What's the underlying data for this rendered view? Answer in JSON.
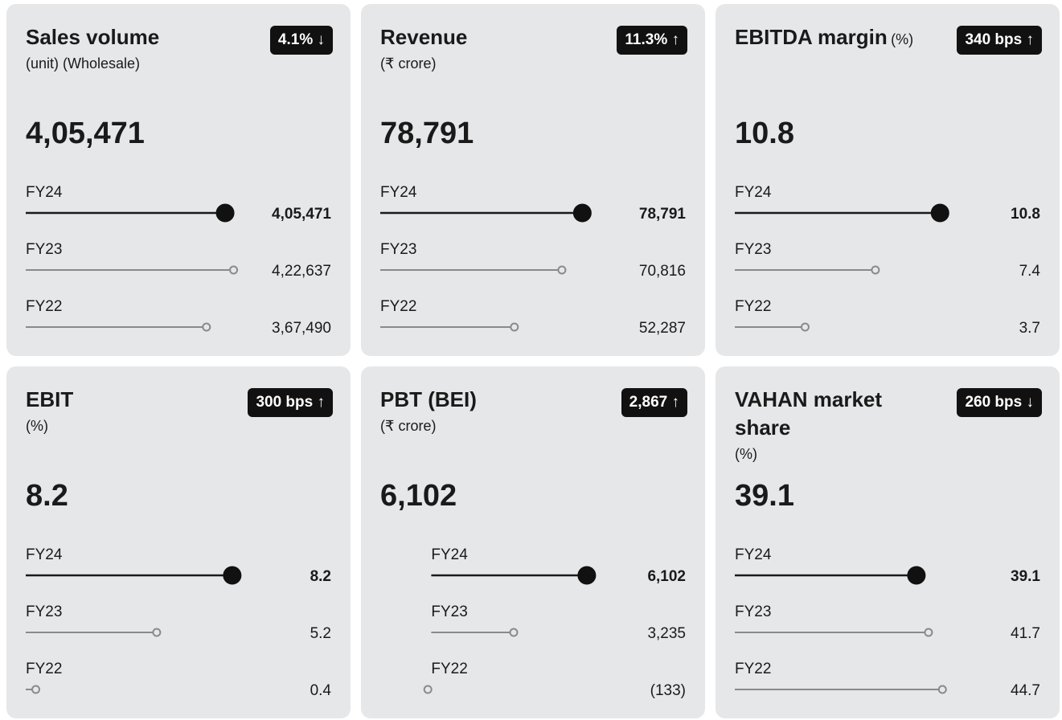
{
  "chart_data": [
    {
      "type": "lollipop",
      "title": "Sales volume",
      "subtitle": "(unit) (Wholesale)",
      "change": "4.1% ↓",
      "headline": "4,05,471",
      "categories": [
        "FY24",
        "FY23",
        "FY22"
      ],
      "values": [
        405471,
        422637,
        367490
      ],
      "value_labels": [
        "4,05,471",
        "4,22,637",
        "3,67,490"
      ],
      "xlim": [
        0,
        425000
      ]
    },
    {
      "type": "lollipop",
      "title": "Revenue",
      "subtitle": "(₹ crore)",
      "change": "11.3% ↑",
      "headline": "78,791",
      "categories": [
        "FY24",
        "FY23",
        "FY22"
      ],
      "values": [
        78791,
        70816,
        52287
      ],
      "value_labels": [
        "78,791",
        "70,816",
        "52,287"
      ],
      "xlim": [
        0,
        81500
      ]
    },
    {
      "type": "lollipop",
      "title": "EBITDA margin",
      "subtitle": "(%)",
      "change": "340 bps ↑",
      "headline": "10.8",
      "categories": [
        "FY24",
        "FY23",
        "FY22"
      ],
      "values": [
        10.8,
        7.4,
        3.7
      ],
      "xlim": [
        0,
        11
      ]
    },
    {
      "type": "lollipop",
      "title": "EBIT",
      "subtitle": "(%)",
      "change": "300 bps ↑",
      "headline": "8.2",
      "categories": [
        "FY24",
        "FY23",
        "FY22"
      ],
      "values": [
        8.2,
        5.2,
        0.4
      ],
      "xlim": [
        0,
        8.3
      ]
    },
    {
      "type": "lollipop",
      "title": "PBT (BEI)",
      "subtitle": "(₹ crore)",
      "change": "2,867 ↑",
      "headline": "6,102",
      "categories": [
        "FY24",
        "FY23",
        "FY22"
      ],
      "values": [
        6102,
        3235,
        -133
      ],
      "value_labels": [
        "6,102",
        "3,235",
        "(133)"
      ],
      "xlim": [
        -2000,
        6200
      ]
    },
    {
      "type": "lollipop",
      "title": "VAHAN market share",
      "subtitle": "(%)",
      "change": "260 bps ↓",
      "headline": "39.1",
      "categories": [
        "FY24",
        "FY23",
        "FY22"
      ],
      "values": [
        39.1,
        41.7,
        44.7
      ],
      "xlim": [
        0,
        45
      ]
    }
  ]
}
